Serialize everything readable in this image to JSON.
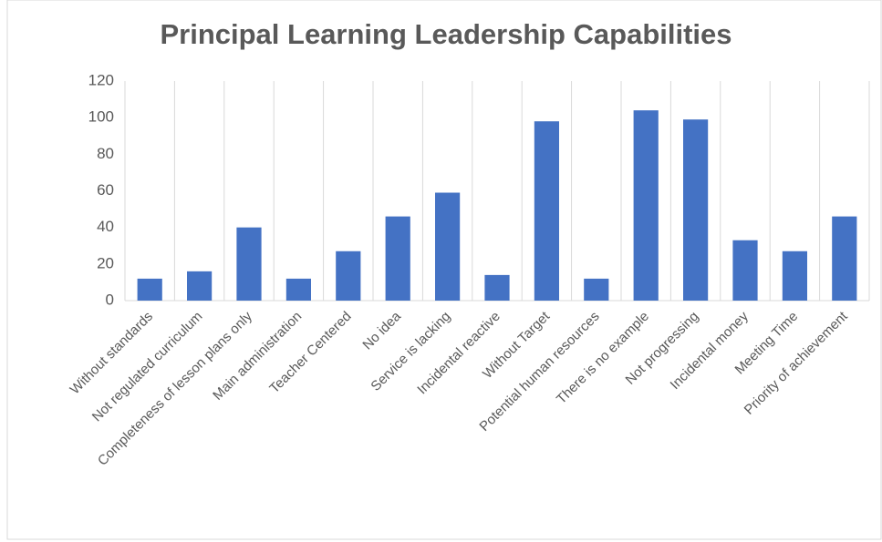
{
  "chart_data": {
    "type": "bar",
    "title": "Principal Learning Leadership Capabilities",
    "categories": [
      "Without standards",
      "Not regulated curriculum",
      "Completeness of lesson plans only",
      "Main administration",
      "Teacher Centered",
      "No idea",
      "Service is lacking",
      "Incidental reactive",
      "Without Target",
      "Potential human resources",
      "There is no example",
      "Not progressing",
      "Incidental money",
      "Meeting Time",
      "Priority of achievement"
    ],
    "values": [
      12,
      16,
      40,
      12,
      27,
      46,
      59,
      14,
      98,
      12,
      104,
      99,
      33,
      27,
      46
    ],
    "color": "#4472c4",
    "ylim": [
      0,
      120
    ],
    "yticks": [
      0,
      20,
      40,
      60,
      80,
      100,
      120
    ],
    "category_grid": true
  }
}
